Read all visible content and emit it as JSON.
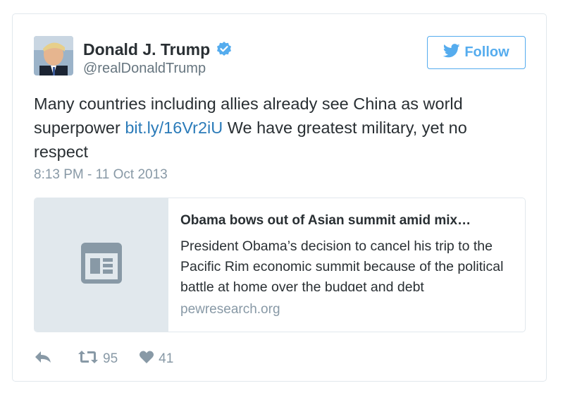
{
  "author": {
    "name": "Donald J. Trump",
    "handle": "@realDonaldTrump"
  },
  "follow_button": {
    "label": "Follow"
  },
  "tweet": {
    "text_part1": "Many countries including allies already see China as world superpower ",
    "link": "bit.ly/16Vr2iU",
    "text_part2": " We have greatest military, yet no respect",
    "timestamp": "8:13 PM - 11 Oct 2013"
  },
  "link_card": {
    "title": "Obama bows out of Asian summit amid mix…",
    "description": "President Obama’s decision to cancel his trip to the Pacific Rim economic summit because of the political battle at home over the budget and debt",
    "domain": "pewresearch.org"
  },
  "actions": {
    "retweets": "95",
    "likes": "41"
  },
  "colors": {
    "accent": "#55acee",
    "link": "#2b7bb9",
    "muted": "#8899a6",
    "card_thumb": "#e1e8ed"
  },
  "icons": {
    "verified": "verified-badge-icon",
    "bird": "twitter-bird-icon",
    "reply": "reply-icon",
    "retweet": "retweet-icon",
    "like": "heart-icon",
    "article": "article-icon"
  }
}
